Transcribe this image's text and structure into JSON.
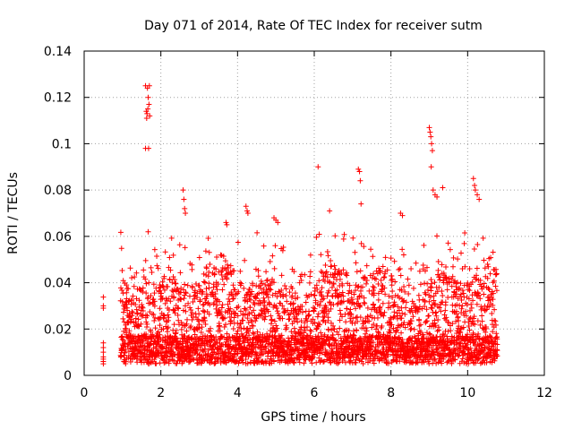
{
  "chart_data": {
    "type": "scatter",
    "title": "Day 071 of 2014, Rate Of TEC Index for receiver sutm",
    "xlabel": "GPS time / hours",
    "ylabel": "ROTI / TECUs",
    "xlim": [
      0,
      12
    ],
    "ylim": [
      0,
      0.14
    ],
    "x_ticks": [
      0,
      2,
      4,
      6,
      8,
      10,
      12
    ],
    "x_tick_labels": [
      "0",
      "2",
      "4",
      "6",
      "8",
      "10",
      "12"
    ],
    "y_ticks": [
      0,
      0.02,
      0.04,
      0.06,
      0.08,
      0.1,
      0.12,
      0.14
    ],
    "y_tick_labels": [
      "0",
      "0.02",
      "0.04",
      "0.06",
      "0.08",
      "0.1",
      "0.12",
      "0.14"
    ],
    "grid": true,
    "marker": "+",
    "marker_color": "#ff0000",
    "series": [
      {
        "name": "ROTI",
        "x_range": [
          0.48,
          10.78
        ],
        "envelope_note": "dense scatter of roughly 3600 samples; dense band from 0.004 to about 0.045 TECU/s with spikes shown in 'x'/'y'",
        "x": [
          0.5,
          0.5,
          0.5,
          0.5,
          0.5,
          0.5,
          0.5,
          0.5,
          0.5,
          0.5,
          1.6,
          1.62,
          1.64,
          1.66,
          1.7,
          1.6,
          1.65,
          1.67,
          1.69,
          1.71,
          1.63,
          1.68,
          2.58,
          2.6,
          2.62,
          2.64,
          3.7,
          3.72,
          4.22,
          4.25,
          4.27,
          4.95,
          5.0,
          5.05,
          6.1,
          6.4,
          7.15,
          7.18,
          7.2,
          7.22,
          8.25,
          8.3,
          9.0,
          9.02,
          9.04,
          9.06,
          9.08,
          9.05,
          9.1,
          9.15,
          9.2,
          9.35,
          10.15,
          10.18,
          10.2,
          10.25,
          10.3
        ],
        "y": [
          0.0338,
          0.03,
          0.029,
          0.014,
          0.012,
          0.01,
          0.008,
          0.007,
          0.006,
          0.005,
          0.098,
          0.114,
          0.113,
          0.115,
          0.125,
          0.125,
          0.124,
          0.12,
          0.117,
          0.112,
          0.111,
          0.098,
          0.08,
          0.076,
          0.072,
          0.07,
          0.066,
          0.065,
          0.073,
          0.071,
          0.07,
          0.068,
          0.067,
          0.066,
          0.09,
          0.071,
          0.089,
          0.088,
          0.084,
          0.074,
          0.07,
          0.069,
          0.107,
          0.105,
          0.103,
          0.1,
          0.097,
          0.09,
          0.08,
          0.078,
          0.077,
          0.081,
          0.085,
          0.082,
          0.08,
          0.078,
          0.076
        ]
      }
    ]
  }
}
